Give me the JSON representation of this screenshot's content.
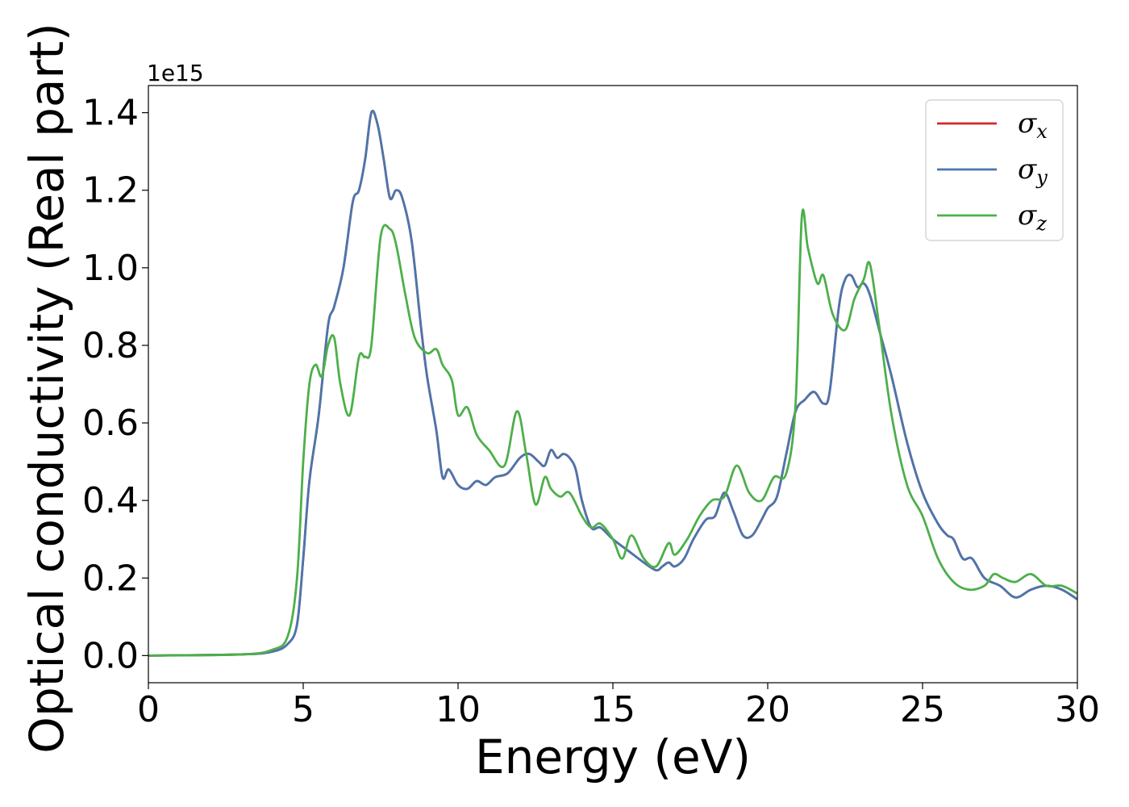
{
  "chart_data": {
    "type": "line",
    "title": "",
    "xlabel": "Energy (eV)",
    "ylabel": "Optical conductivity (Real part)",
    "y_offset_label": "1e15",
    "xlim": [
      0,
      30
    ],
    "ylim": [
      -0.07,
      1.47
    ],
    "xticks": [
      0,
      5,
      10,
      15,
      20,
      25,
      30
    ],
    "yticks": [
      0.0,
      0.2,
      0.4,
      0.6,
      0.8,
      1.0,
      1.2,
      1.4
    ],
    "xtick_labels": [
      "0",
      "5",
      "10",
      "15",
      "20",
      "25",
      "30"
    ],
    "ytick_labels": [
      "0.0",
      "0.2",
      "0.4",
      "0.6",
      "0.8",
      "1.0",
      "1.2",
      "1.4"
    ],
    "grid": false,
    "legend_position": "top-right",
    "series": [
      {
        "name": "σx",
        "sym": "σ",
        "sub": "x",
        "color": "#d62728",
        "x": [
          0,
          3,
          4,
          4.5,
          4.8,
          5.0,
          5.2,
          5.5,
          5.8,
          6.0,
          6.3,
          6.6,
          6.8,
          7.0,
          7.2,
          7.4,
          7.6,
          7.8,
          8.0,
          8.2,
          8.5,
          8.8,
          9.0,
          9.3,
          9.5,
          9.7,
          10.0,
          10.3,
          10.6,
          10.9,
          11.2,
          11.6,
          12.0,
          12.3,
          12.6,
          12.8,
          13.0,
          13.2,
          13.4,
          13.6,
          13.8,
          14.0,
          14.3,
          14.6,
          15.0,
          15.5,
          16.0,
          16.4,
          16.6,
          16.8,
          17.0,
          17.3,
          17.6,
          18.0,
          18.3,
          18.6,
          18.9,
          19.2,
          19.5,
          19.8,
          20.0,
          20.3,
          20.6,
          20.9,
          21.2,
          21.5,
          21.8,
          22.0,
          22.3,
          22.5,
          22.7,
          22.9,
          23.1,
          23.3,
          23.6,
          24.0,
          24.5,
          25.0,
          25.5,
          25.8,
          26.0,
          26.3,
          26.6,
          27.0,
          27.5,
          28.0,
          28.5,
          29.0,
          29.5,
          30.0
        ],
        "y": [
          0,
          0.003,
          0.01,
          0.03,
          0.08,
          0.25,
          0.45,
          0.62,
          0.85,
          0.9,
          1.0,
          1.17,
          1.2,
          1.28,
          1.4,
          1.37,
          1.28,
          1.18,
          1.2,
          1.18,
          1.07,
          0.85,
          0.72,
          0.58,
          0.46,
          0.48,
          0.44,
          0.43,
          0.45,
          0.44,
          0.46,
          0.47,
          0.51,
          0.52,
          0.5,
          0.49,
          0.53,
          0.51,
          0.52,
          0.51,
          0.48,
          0.4,
          0.33,
          0.33,
          0.3,
          0.27,
          0.24,
          0.22,
          0.23,
          0.24,
          0.23,
          0.25,
          0.3,
          0.35,
          0.36,
          0.42,
          0.37,
          0.31,
          0.31,
          0.35,
          0.38,
          0.41,
          0.52,
          0.63,
          0.66,
          0.68,
          0.65,
          0.68,
          0.9,
          0.97,
          0.98,
          0.95,
          0.96,
          0.93,
          0.84,
          0.72,
          0.55,
          0.42,
          0.34,
          0.31,
          0.3,
          0.25,
          0.25,
          0.2,
          0.18,
          0.15,
          0.17,
          0.18,
          0.17,
          0.145
        ]
      },
      {
        "name": "σy",
        "sym": "σ",
        "sub": "y",
        "color": "#4a76ad",
        "x": [
          0,
          3,
          4,
          4.5,
          4.8,
          5.0,
          5.2,
          5.5,
          5.8,
          6.0,
          6.3,
          6.6,
          6.8,
          7.0,
          7.2,
          7.4,
          7.6,
          7.8,
          8.0,
          8.2,
          8.5,
          8.8,
          9.0,
          9.3,
          9.5,
          9.7,
          10.0,
          10.3,
          10.6,
          10.9,
          11.2,
          11.6,
          12.0,
          12.3,
          12.6,
          12.8,
          13.0,
          13.2,
          13.4,
          13.6,
          13.8,
          14.0,
          14.3,
          14.6,
          15.0,
          15.5,
          16.0,
          16.4,
          16.6,
          16.8,
          17.0,
          17.3,
          17.6,
          18.0,
          18.3,
          18.6,
          18.9,
          19.2,
          19.5,
          19.8,
          20.0,
          20.3,
          20.6,
          20.9,
          21.2,
          21.5,
          21.8,
          22.0,
          22.3,
          22.5,
          22.7,
          22.9,
          23.1,
          23.3,
          23.6,
          24.0,
          24.5,
          25.0,
          25.5,
          25.8,
          26.0,
          26.3,
          26.6,
          27.0,
          27.5,
          28.0,
          28.5,
          29.0,
          29.5,
          30.0
        ],
        "y": [
          0,
          0.003,
          0.01,
          0.03,
          0.08,
          0.25,
          0.45,
          0.62,
          0.85,
          0.9,
          1.0,
          1.17,
          1.2,
          1.28,
          1.4,
          1.37,
          1.28,
          1.18,
          1.2,
          1.18,
          1.07,
          0.85,
          0.72,
          0.58,
          0.46,
          0.48,
          0.44,
          0.43,
          0.45,
          0.44,
          0.46,
          0.47,
          0.51,
          0.52,
          0.5,
          0.49,
          0.53,
          0.51,
          0.52,
          0.51,
          0.48,
          0.4,
          0.33,
          0.33,
          0.3,
          0.27,
          0.24,
          0.22,
          0.23,
          0.24,
          0.23,
          0.25,
          0.3,
          0.35,
          0.36,
          0.42,
          0.37,
          0.31,
          0.31,
          0.35,
          0.38,
          0.41,
          0.52,
          0.63,
          0.66,
          0.68,
          0.65,
          0.68,
          0.9,
          0.97,
          0.98,
          0.95,
          0.96,
          0.93,
          0.84,
          0.72,
          0.55,
          0.42,
          0.34,
          0.31,
          0.3,
          0.25,
          0.25,
          0.2,
          0.18,
          0.15,
          0.17,
          0.18,
          0.17,
          0.145
        ]
      },
      {
        "name": "σz",
        "sym": "σ",
        "sub": "z",
        "color": "#4daf4a",
        "x": [
          0,
          3,
          4,
          4.5,
          4.8,
          5.0,
          5.2,
          5.4,
          5.6,
          5.8,
          6.0,
          6.2,
          6.5,
          6.8,
          7.0,
          7.2,
          7.5,
          7.8,
          8.0,
          8.3,
          8.6,
          9.0,
          9.3,
          9.5,
          9.8,
          10.0,
          10.3,
          10.6,
          11.0,
          11.5,
          11.9,
          12.2,
          12.5,
          12.8,
          13.0,
          13.3,
          13.6,
          14.0,
          14.3,
          14.6,
          15.0,
          15.3,
          15.6,
          16.0,
          16.4,
          16.8,
          17.0,
          17.4,
          17.8,
          18.2,
          18.6,
          19.0,
          19.4,
          19.8,
          20.2,
          20.6,
          20.9,
          21.1,
          21.3,
          21.6,
          21.8,
          22.1,
          22.5,
          22.8,
          23.1,
          23.3,
          23.6,
          24.0,
          24.5,
          25.0,
          25.5,
          26.0,
          26.5,
          27.0,
          27.3,
          27.6,
          28.0,
          28.5,
          29.0,
          29.5,
          30.0
        ],
        "y": [
          0,
          0.003,
          0.015,
          0.05,
          0.2,
          0.5,
          0.7,
          0.75,
          0.72,
          0.8,
          0.82,
          0.7,
          0.62,
          0.77,
          0.77,
          0.8,
          1.08,
          1.1,
          1.06,
          0.93,
          0.82,
          0.78,
          0.79,
          0.75,
          0.71,
          0.62,
          0.64,
          0.57,
          0.53,
          0.49,
          0.63,
          0.52,
          0.39,
          0.46,
          0.43,
          0.41,
          0.42,
          0.36,
          0.33,
          0.34,
          0.3,
          0.25,
          0.31,
          0.25,
          0.23,
          0.29,
          0.26,
          0.3,
          0.36,
          0.4,
          0.41,
          0.49,
          0.42,
          0.4,
          0.46,
          0.47,
          0.65,
          1.13,
          1.05,
          0.96,
          0.98,
          0.88,
          0.84,
          0.92,
          0.97,
          1.01,
          0.85,
          0.62,
          0.44,
          0.36,
          0.25,
          0.19,
          0.17,
          0.18,
          0.21,
          0.2,
          0.19,
          0.21,
          0.18,
          0.18,
          0.16
        ]
      }
    ]
  }
}
